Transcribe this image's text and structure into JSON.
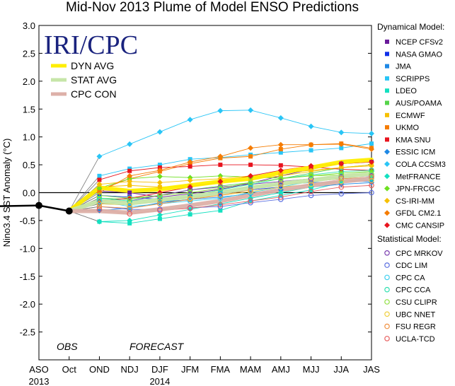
{
  "chart_data": {
    "type": "line",
    "title": "Mid-Nov 2013 Plume of Model ENSO Predictions",
    "xlabel": "",
    "ylabel": "Nino3.4 SST Anomaly (°C)",
    "ylim": [
      -3.0,
      3.0
    ],
    "yticks": [
      "3.0",
      "2.5",
      "2.0",
      "1.5",
      "1.0",
      "0.5",
      "0.0",
      "-0.5",
      "-1.0",
      "-1.5",
      "-2.0",
      "-2.5"
    ],
    "categories": [
      "ASO",
      "Oct",
      "OND",
      "NDJ",
      "DJF",
      "JFM",
      "FMA",
      "MAM",
      "AMJ",
      "MJJ",
      "JJA",
      "JAS"
    ],
    "year_labels": [
      {
        "label": "2013",
        "at": "ASO"
      },
      {
        "label": "2014",
        "at": "DJF"
      }
    ],
    "grid": false,
    "observed": {
      "name": "OBS",
      "x": [
        "ASO",
        "Oct"
      ],
      "values": [
        -0.23,
        -0.33
      ]
    },
    "forecast_label": "FORECAST",
    "logo_text": "IRI/CPC",
    "averages": [
      {
        "name": "DYN AVG",
        "color": "#ffee00",
        "values": [
          0.09,
          0.03,
          0.06,
          0.13,
          0.2,
          0.25,
          0.36,
          0.45,
          0.55,
          0.59
        ]
      },
      {
        "name": "STAT AVG",
        "color": "#c6e6a8",
        "values": [
          -0.15,
          -0.19,
          -0.13,
          -0.07,
          0.0,
          0.09,
          0.16,
          0.22,
          0.29,
          0.34
        ]
      },
      {
        "name": "CPC CON",
        "color": "#ddb0a8",
        "values": [
          -0.33,
          -0.36,
          -0.3,
          -0.23,
          -0.15,
          -0.05,
          0.05,
          0.13,
          0.2,
          0.25
        ]
      }
    ],
    "dynamical_models": [
      {
        "name": "NCEP CFSv2",
        "color": "#6a1b9a",
        "marker": "square",
        "values": [
          0.03,
          0.0,
          -0.08,
          -0.02,
          0.06,
          0.17,
          0.3,
          0.42,
          0.52,
          0.55
        ]
      },
      {
        "name": "NASA GMAO",
        "color": "#1030e8",
        "marker": "square",
        "values": [
          -0.05,
          -0.08,
          -0.12,
          -0.08,
          -0.02,
          0.05,
          0.1,
          0.14,
          0.2,
          0.22
        ]
      },
      {
        "name": "JMA",
        "color": "#1e88e5",
        "marker": "square",
        "values": [
          -0.2,
          -0.22,
          -0.16,
          -0.13,
          0.03,
          0.1,
          0.15,
          0.18,
          0.2,
          0.2
        ]
      },
      {
        "name": "SCRIPPS",
        "color": "#29c5f6",
        "marker": "square",
        "values": [
          0.3,
          0.43,
          0.5,
          0.6,
          0.63,
          0.68,
          0.72,
          0.76,
          0.8,
          0.88
        ]
      },
      {
        "name": "LDEO",
        "color": "#14e0c0",
        "marker": "square",
        "values": [
          -0.52,
          -0.55,
          -0.47,
          -0.39,
          -0.32,
          -0.15,
          -0.05,
          0.05,
          0.18,
          0.28
        ]
      },
      {
        "name": "AUS/POAMA",
        "color": "#55d44a",
        "marker": "square",
        "values": [
          -0.1,
          -0.12,
          -0.05,
          0.05,
          0.12,
          0.18,
          0.25,
          0.35,
          0.45,
          0.5
        ]
      },
      {
        "name": "ECMWF",
        "color": "#f6c000",
        "marker": "square",
        "values": [
          0.1,
          0.13,
          0.1,
          0.12,
          0.18,
          0.24,
          0.3,
          0.38,
          0.45,
          0.5
        ]
      },
      {
        "name": "UKMO",
        "color": "#f57c00",
        "marker": "square",
        "values": [
          0.05,
          0.25,
          0.38,
          0.52,
          0.62,
          0.65,
          0.78,
          0.86,
          0.88,
          0.8
        ]
      },
      {
        "name": "KMA SNU",
        "color": "#e8141e",
        "marker": "square",
        "values": [
          0.23,
          0.39,
          0.45,
          0.47,
          0.5,
          0.5,
          0.49,
          0.46,
          0.42,
          0.4
        ]
      },
      {
        "name": "ESSIC ICM",
        "color": "#1e88e5",
        "marker": "diamond",
        "values": [
          -0.32,
          -0.28,
          -0.18,
          -0.12,
          -0.08,
          -0.02,
          0.05,
          0.1,
          0.15,
          0.18
        ]
      },
      {
        "name": "COLA CCSM3",
        "color": "#29c5f6",
        "marker": "diamond",
        "values": [
          0.65,
          0.87,
          1.09,
          1.31,
          1.47,
          1.48,
          1.34,
          1.19,
          1.08,
          1.06
        ]
      },
      {
        "name": "MetFRANCE",
        "color": "#14e0c0",
        "marker": "diamond",
        "values": [
          -0.52,
          -0.5,
          -0.4,
          -0.3,
          -0.2,
          -0.1,
          0.0,
          0.1,
          0.2,
          0.25
        ]
      },
      {
        "name": "JPN-FRCGC",
        "color": "#6ee020",
        "marker": "diamond",
        "values": [
          0.08,
          0.25,
          0.29,
          0.27,
          0.3,
          0.28,
          0.26,
          0.3,
          0.35,
          0.38
        ]
      },
      {
        "name": "CS-IRI-MM",
        "color": "#f6c000",
        "marker": "diamond",
        "values": [
          0.15,
          0.2,
          0.18,
          0.22,
          0.25,
          0.3,
          0.35,
          0.4,
          0.45,
          0.48
        ]
      },
      {
        "name": "GFDL CM2.1",
        "color": "#f57c00",
        "marker": "diamond",
        "values": [
          0.0,
          0.3,
          0.4,
          0.55,
          0.65,
          0.8,
          0.86,
          0.86,
          0.87,
          0.78
        ]
      },
      {
        "name": "CMC CANSIP",
        "color": "#e8141e",
        "marker": "diamond",
        "values": [
          -0.15,
          -0.1,
          0.0,
          0.1,
          0.2,
          0.3,
          0.4,
          0.48,
          0.52,
          0.55
        ]
      }
    ],
    "statistical_models": [
      {
        "name": "CPC MRKOV",
        "color": "#7b3fb0",
        "marker": "circle",
        "values": [
          -0.2,
          -0.15,
          -0.05,
          0.05,
          0.1,
          0.15,
          0.2,
          0.25,
          0.28,
          0.3
        ]
      },
      {
        "name": "CDC LIM",
        "color": "#5b6fe0",
        "marker": "circle",
        "values": [
          -0.25,
          -0.3,
          -0.3,
          -0.27,
          -0.25,
          -0.18,
          -0.12,
          -0.05,
          -0.02,
          0.0
        ]
      },
      {
        "name": "CPC CA",
        "color": "#40d0f0",
        "marker": "circle",
        "values": [
          -0.15,
          -0.25,
          -0.2,
          -0.15,
          -0.1,
          0.0,
          0.1,
          0.2,
          0.25,
          0.28
        ]
      },
      {
        "name": "CPC CCA",
        "color": "#30e0b0",
        "marker": "circle",
        "values": [
          -0.1,
          -0.15,
          -0.1,
          -0.05,
          0.05,
          0.15,
          0.25,
          0.32,
          0.38,
          0.4
        ]
      },
      {
        "name": "CSU CLIPR",
        "color": "#90e040",
        "marker": "circle",
        "values": [
          -0.05,
          -0.1,
          -0.05,
          0.0,
          0.08,
          0.18,
          0.25,
          0.3,
          0.32,
          0.33
        ]
      },
      {
        "name": "UBC NNET",
        "color": "#f0d040",
        "marker": "circle",
        "values": [
          -0.2,
          -0.22,
          -0.15,
          -0.1,
          -0.05,
          0.02,
          0.1,
          0.15,
          0.2,
          0.22
        ]
      },
      {
        "name": "FSU REGR",
        "color": "#f09040",
        "marker": "circle",
        "values": [
          -0.25,
          -0.28,
          -0.2,
          -0.12,
          -0.05,
          0.05,
          0.15,
          0.2,
          0.25,
          0.28
        ]
      },
      {
        "name": "UCLA-TCD",
        "color": "#e86060",
        "marker": "circle",
        "values": [
          -0.3,
          -0.38,
          -0.32,
          -0.28,
          -0.22,
          -0.15,
          -0.08,
          0.02,
          0.1,
          0.13
        ]
      }
    ],
    "legend": {
      "dynamical_heading": "Dynamical Model:",
      "statistical_heading": "Statistical Model:",
      "placement": "right"
    }
  }
}
